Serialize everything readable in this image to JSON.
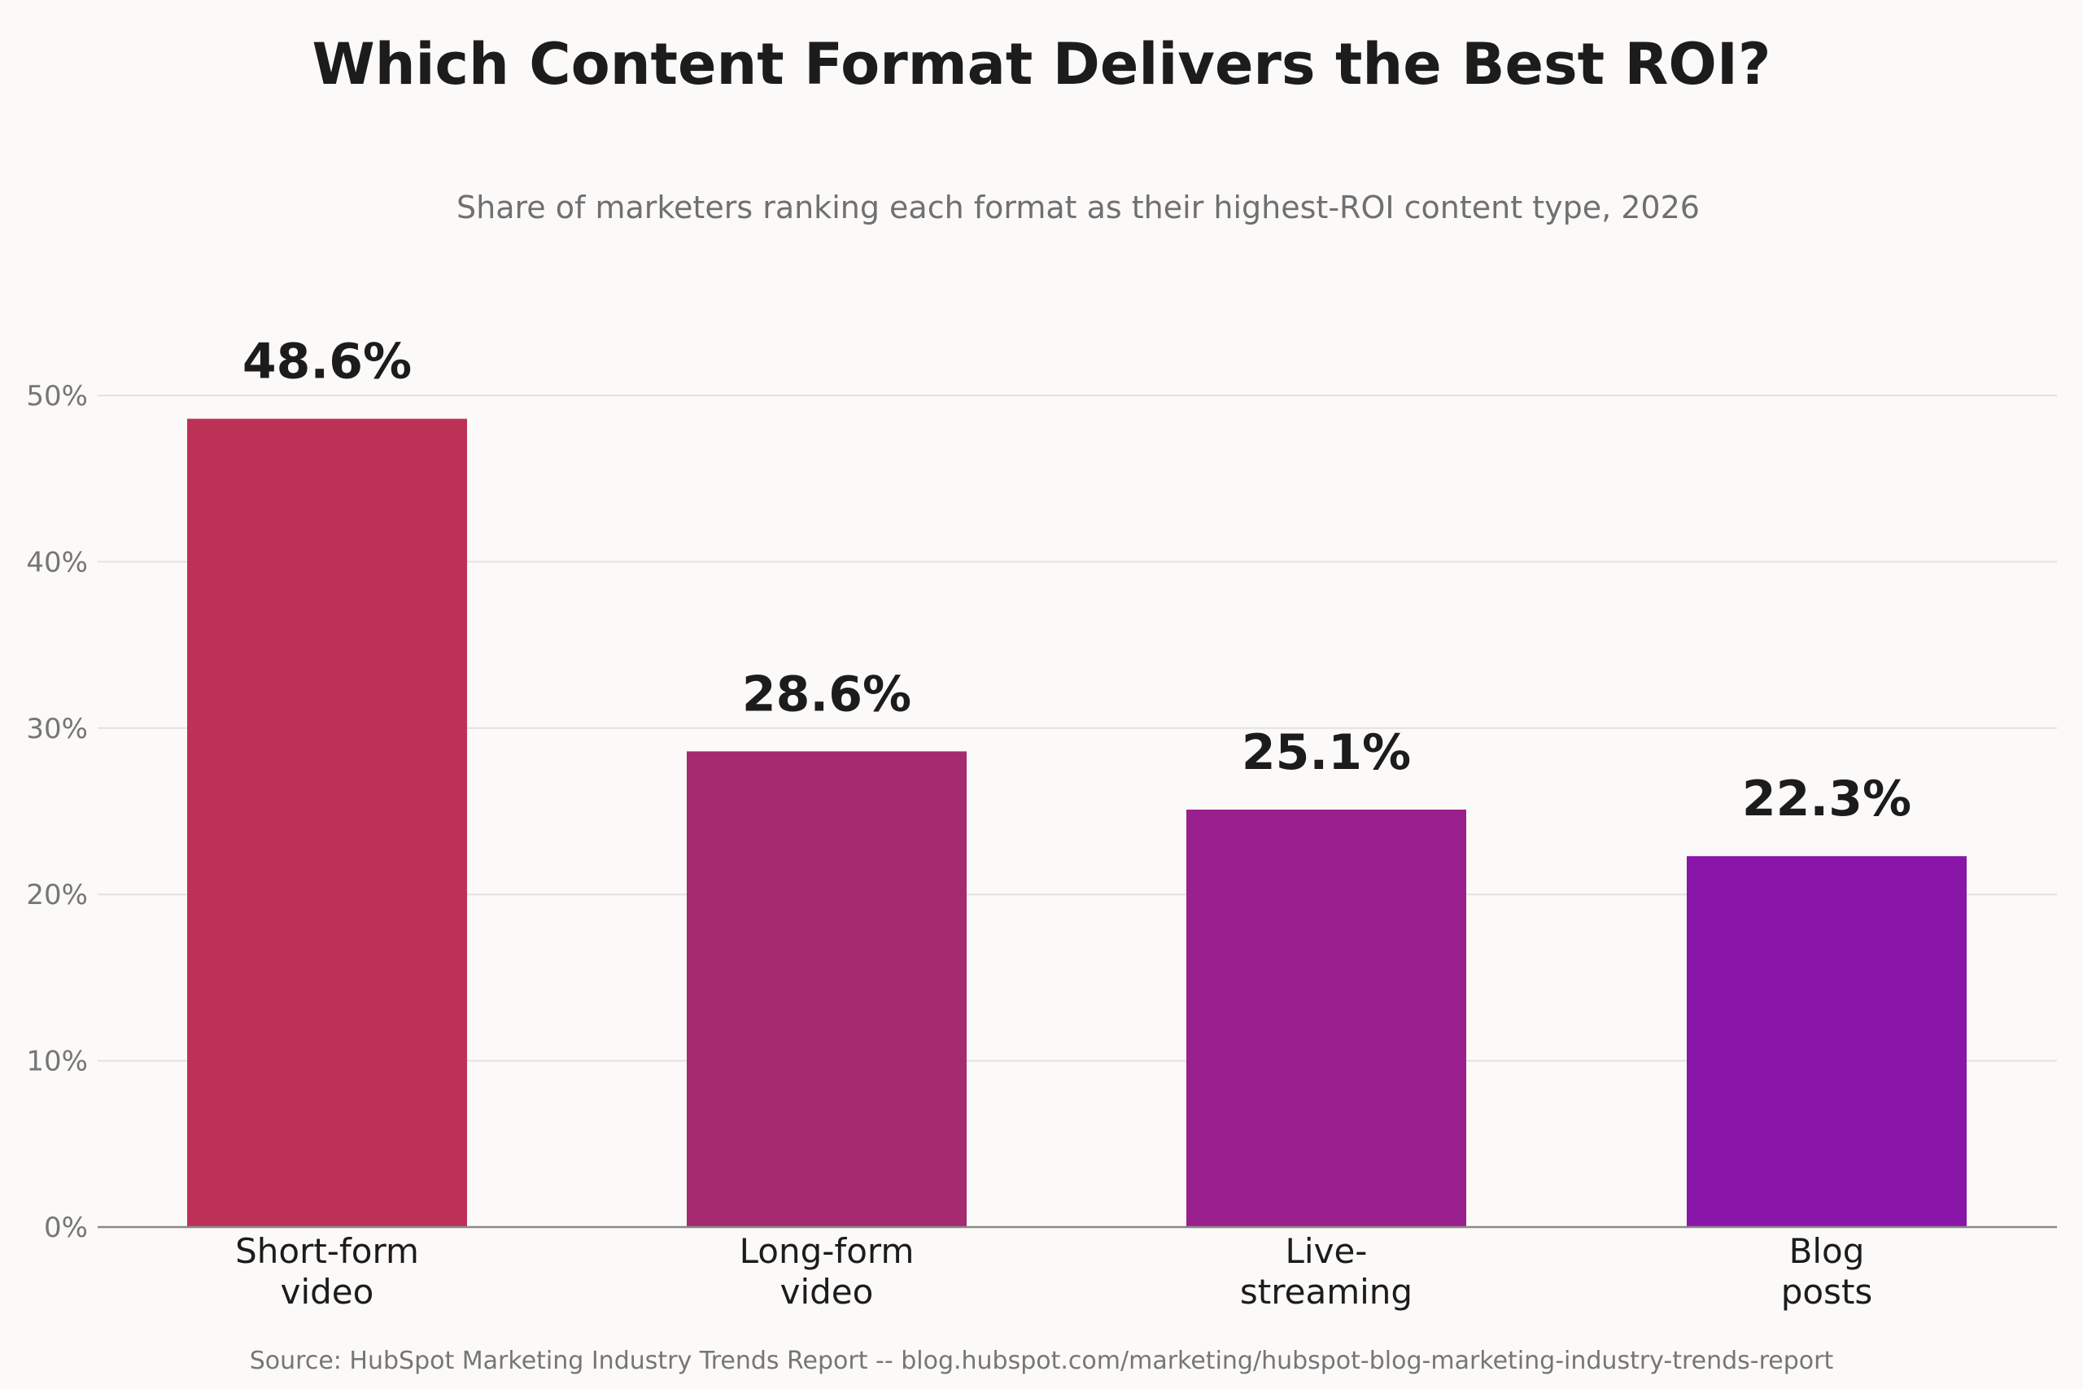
{
  "chart_data": {
    "type": "bar",
    "title": "Which Content Format Delivers the Best ROI?",
    "subtitle": "Share of marketers ranking each format as their highest-ROI content type, 2026",
    "categories": [
      [
        "Short-form",
        "video"
      ],
      [
        "Long-form",
        "video"
      ],
      [
        "Live-",
        "streaming"
      ],
      [
        "Blog",
        "posts"
      ]
    ],
    "values": [
      48.6,
      28.6,
      25.1,
      22.3
    ],
    "value_labels": [
      "48.6%",
      "28.6%",
      "25.1%",
      "22.3%"
    ],
    "colors": [
      "#be3157",
      "#a52a70",
      "#9a218d",
      "#8a15a9"
    ],
    "ylim": [
      0,
      50
    ],
    "yticks": [
      0,
      10,
      20,
      30,
      40,
      50
    ],
    "ytick_labels": [
      "0%",
      "10%",
      "20%",
      "30%",
      "40%",
      "50%"
    ],
    "xlabel": "",
    "ylabel": "",
    "grid": true,
    "legend": "none",
    "source": "Source: HubSpot Marketing Industry Trends Report -- blog.hubspot.com/marketing/hubspot-blog-marketing-industry-trends-report"
  }
}
